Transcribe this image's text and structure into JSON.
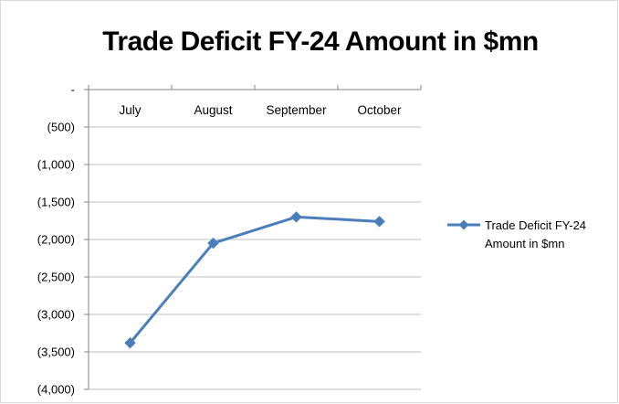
{
  "chart_data": {
    "type": "line",
    "title": "Trade Deficit FY-24 Amount in $mn",
    "categories": [
      "July",
      "August",
      "September",
      "October"
    ],
    "series": [
      {
        "name": "Trade Deficit FY-24 Amount in $mn",
        "values": [
          -3380,
          -2050,
          -1700,
          -1760
        ]
      }
    ],
    "ylim": [
      -4000,
      0
    ],
    "yticks": [
      0,
      -500,
      -1000,
      -1500,
      -2000,
      -2500,
      -3000,
      -3500,
      -4000
    ],
    "ytick_labels": [
      "-",
      "(500)",
      "(1,000)",
      "(1,500)",
      "(2,000)",
      "(2,500)",
      "(3,000)",
      "(3,500)",
      "(4,000)"
    ],
    "xaxis_position": "top",
    "grid": true,
    "legend_position": "right",
    "colors": {
      "series": "#4a7ebb",
      "grid": "#bfbfbf",
      "axis": "#868686"
    }
  }
}
